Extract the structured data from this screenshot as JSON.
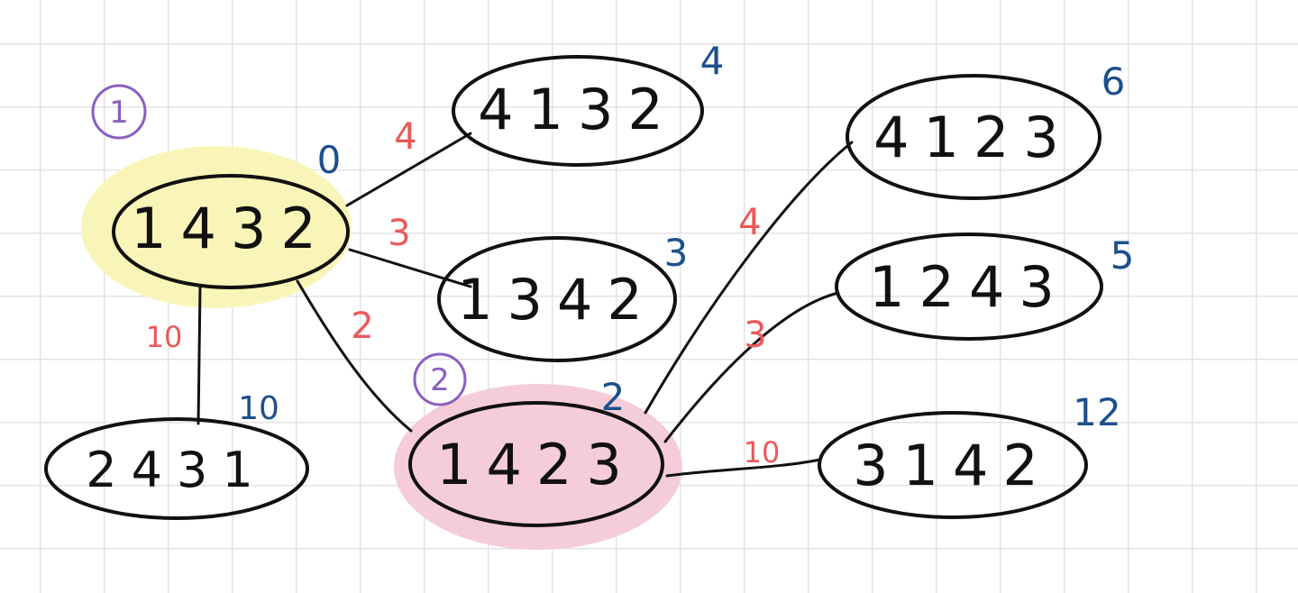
{
  "highlight_colors": {
    "start": "#f9f5b8",
    "selected": "#f4cdd9"
  },
  "colors": {
    "edge_weight": "#e85a5a",
    "path_cost": "#1d4f8c",
    "step_marker": "#8a5fc0"
  },
  "nodes": {
    "n1432": {
      "label": "1432",
      "cost": "0",
      "step": "1"
    },
    "n4132": {
      "label": "4132",
      "cost": "4"
    },
    "n1342": {
      "label": "1342",
      "cost": "3"
    },
    "n2431": {
      "label": "2431",
      "cost": "10"
    },
    "n1423": {
      "label": "1423",
      "cost": "2",
      "step": "2"
    },
    "n4123": {
      "label": "4123",
      "cost": "6"
    },
    "n1243": {
      "label": "1243",
      "cost": "5"
    },
    "n3142": {
      "label": "3142",
      "cost": "12"
    }
  },
  "edges": {
    "e1432_4132": "4",
    "e1432_1342": "3",
    "e1432_1423": "2",
    "e1432_2431": "10",
    "e1423_4123": "4",
    "e1423_1243": "3",
    "e1423_3142": "10"
  }
}
